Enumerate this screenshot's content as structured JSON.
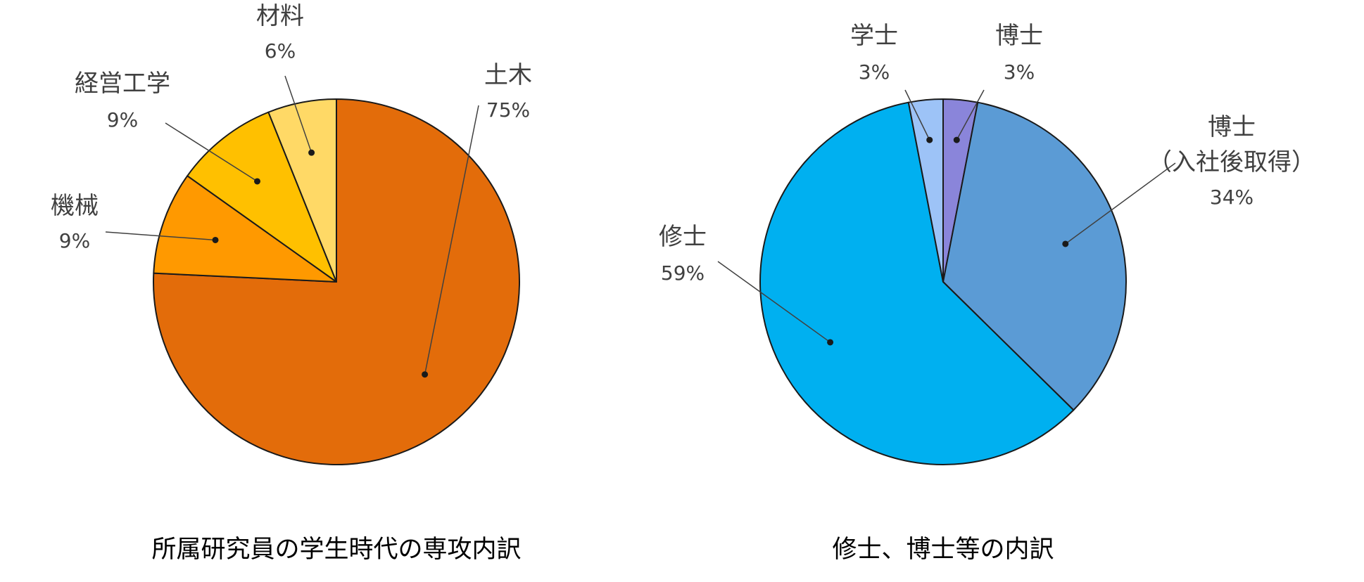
{
  "chart_data": [
    {
      "type": "pie",
      "title": "所属研究員の学生時代の専攻内訳",
      "start": "12 o'clock",
      "direction": "clockwise",
      "slices": [
        {
          "label": "土木",
          "value_label": "75%",
          "value": 75,
          "color": "#E36C0A"
        },
        {
          "label": "機械",
          "value_label": "9%",
          "value": 9,
          "color": "#FF9900"
        },
        {
          "label": "経営工学",
          "value_label": "9%",
          "value": 9,
          "color": "#FFC000"
        },
        {
          "label": "材料",
          "value_label": "6%",
          "value": 6,
          "color": "#FFD966"
        }
      ]
    },
    {
      "type": "pie",
      "title": "修士、博士等の内訳",
      "start": "12 o'clock",
      "direction": "clockwise",
      "slices": [
        {
          "label": "博士",
          "value_label": "3%",
          "value": 3,
          "color": "#8A85DA"
        },
        {
          "label": "博士\n（入社後取得）",
          "value_label": "34%",
          "value": 34,
          "color": "#5B9BD5"
        },
        {
          "label": "修士",
          "value_label": "59%",
          "value": 59,
          "color": "#00B0F0"
        },
        {
          "label": "学士",
          "value_label": "3%",
          "value": 3,
          "color": "#9DC3F7"
        }
      ]
    }
  ]
}
